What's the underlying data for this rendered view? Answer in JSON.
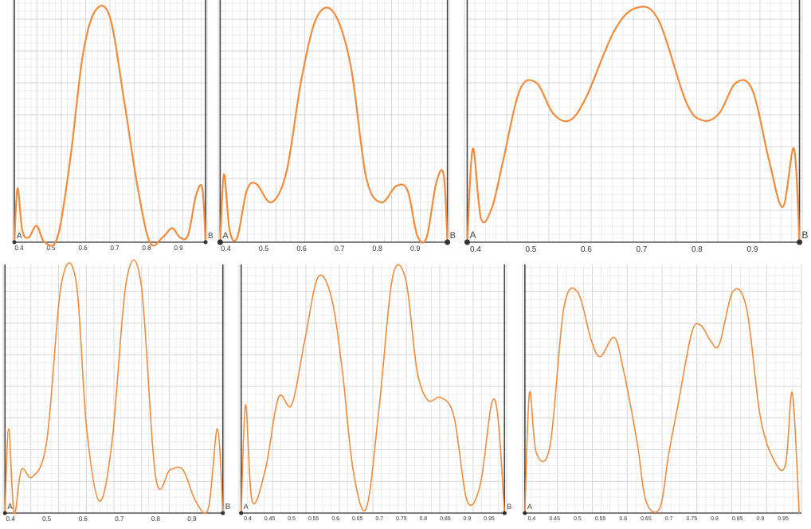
{
  "chart_data": [
    {
      "type": "line",
      "xlim": [
        0.38,
        0.99
      ],
      "ylim": [
        0,
        1.0
      ],
      "x_ticks": [
        "0.4",
        "0.5",
        "0.6",
        "0.7",
        "0.8",
        "0.9"
      ],
      "point_labels": [
        "A",
        "B"
      ],
      "line_color": "#f28b3c",
      "series": [
        {
          "x": [
            0.385,
            0.395,
            0.41,
            0.43,
            0.455,
            0.48,
            0.52,
            0.56,
            0.6,
            0.64,
            0.685,
            0.73,
            0.77,
            0.81,
            0.85,
            0.88,
            0.905,
            0.93,
            0.955,
            0.975,
            0.985
          ],
          "values": [
            0.0,
            0.23,
            0.05,
            0.02,
            0.07,
            0.0,
            0.02,
            0.35,
            0.8,
            0.99,
            0.96,
            0.6,
            0.25,
            0.0,
            0.02,
            0.06,
            0.02,
            0.03,
            0.2,
            0.23,
            0.0
          ]
        }
      ]
    },
    {
      "type": "line",
      "xlim": [
        0.38,
        0.99
      ],
      "ylim": [
        0,
        1.0
      ],
      "x_ticks": [
        "0.4",
        "0.5",
        "0.6",
        "0.7",
        "0.8",
        "0.9"
      ],
      "point_labels": [
        "A",
        "B"
      ],
      "line_color": "#f28b3c",
      "series": [
        {
          "x": [
            0.385,
            0.395,
            0.41,
            0.43,
            0.455,
            0.48,
            0.52,
            0.56,
            0.6,
            0.64,
            0.685,
            0.73,
            0.77,
            0.81,
            0.85,
            0.88,
            0.905,
            0.93,
            0.955,
            0.975,
            0.985
          ],
          "values": [
            0.0,
            0.29,
            0.05,
            0.02,
            0.22,
            0.25,
            0.17,
            0.3,
            0.7,
            0.96,
            0.98,
            0.75,
            0.28,
            0.17,
            0.24,
            0.22,
            0.03,
            0.02,
            0.25,
            0.29,
            0.0
          ]
        }
      ]
    },
    {
      "type": "line",
      "xlim": [
        0.38,
        0.99
      ],
      "ylim": [
        0,
        1.0
      ],
      "x_ticks": [
        "0.4",
        "0.5",
        "0.6",
        "0.7",
        "0.8",
        "0.9"
      ],
      "point_labels": [
        "A",
        "B"
      ],
      "line_color": "#f28b3c",
      "series": [
        {
          "x": [
            0.385,
            0.395,
            0.41,
            0.43,
            0.45,
            0.48,
            0.51,
            0.54,
            0.57,
            0.6,
            0.65,
            0.69,
            0.73,
            0.78,
            0.81,
            0.84,
            0.87,
            0.9,
            0.93,
            0.955,
            0.975,
            0.985
          ],
          "values": [
            0.0,
            0.4,
            0.1,
            0.15,
            0.35,
            0.65,
            0.68,
            0.55,
            0.52,
            0.62,
            0.9,
            1.0,
            0.95,
            0.6,
            0.52,
            0.55,
            0.68,
            0.65,
            0.35,
            0.15,
            0.4,
            0.0
          ]
        }
      ]
    },
    {
      "type": "line",
      "xlim": [
        0.38,
        0.99
      ],
      "ylim": [
        0,
        1.0
      ],
      "x_ticks": [
        "0.4",
        "0.5",
        "0.6",
        "0.7",
        "0.8",
        "0.9"
      ],
      "point_labels": [
        "A",
        "B"
      ],
      "line_color": "#f28b3c",
      "series": [
        {
          "x": [
            0.385,
            0.395,
            0.41,
            0.43,
            0.46,
            0.5,
            0.54,
            0.58,
            0.61,
            0.645,
            0.68,
            0.72,
            0.76,
            0.8,
            0.84,
            0.875,
            0.91,
            0.945,
            0.97,
            0.985
          ],
          "values": [
            0.0,
            0.35,
            0.0,
            0.18,
            0.15,
            0.3,
            0.95,
            0.97,
            0.35,
            0.05,
            0.3,
            0.97,
            0.95,
            0.15,
            0.18,
            0.18,
            0.05,
            0.02,
            0.35,
            0.0
          ]
        }
      ]
    },
    {
      "type": "line",
      "xlim": [
        0.38,
        0.99
      ],
      "ylim": [
        0,
        1.0
      ],
      "x_ticks": [
        "0.4",
        "0.45",
        "0.5",
        "0.55",
        "0.6",
        "0.65",
        "0.7",
        "0.75",
        "0.8",
        "0.85",
        "0.9",
        "0.95"
      ],
      "point_labels": [
        "A",
        "B"
      ],
      "line_color": "#f28b3c",
      "series": [
        {
          "x": [
            0.385,
            0.395,
            0.41,
            0.44,
            0.47,
            0.5,
            0.53,
            0.56,
            0.59,
            0.615,
            0.64,
            0.67,
            0.7,
            0.73,
            0.76,
            0.785,
            0.81,
            0.84,
            0.87,
            0.9,
            0.93,
            0.955,
            0.97,
            0.985
          ],
          "values": [
            0.0,
            0.45,
            0.05,
            0.18,
            0.48,
            0.45,
            0.72,
            0.98,
            0.9,
            0.6,
            0.18,
            0.02,
            0.45,
            0.98,
            0.97,
            0.6,
            0.47,
            0.48,
            0.4,
            0.05,
            0.12,
            0.45,
            0.4,
            0.0
          ]
        }
      ]
    },
    {
      "type": "line",
      "xlim": [
        0.38,
        0.99
      ],
      "ylim": [
        0,
        1.0
      ],
      "x_ticks": [
        "0.4",
        "0.45",
        "0.5",
        "0.55",
        "0.6",
        "0.65",
        "0.7",
        "0.75",
        "0.8",
        "0.85",
        "0.9",
        "0.95"
      ],
      "point_labels": [
        "A"
      ],
      "line_color": "#f28b3c",
      "series": [
        {
          "x": [
            0.385,
            0.395,
            0.41,
            0.44,
            0.47,
            0.5,
            0.53,
            0.55,
            0.58,
            0.6,
            0.63,
            0.65,
            0.68,
            0.7,
            0.72,
            0.75,
            0.77,
            0.79,
            0.81,
            0.84,
            0.87,
            0.9,
            0.93,
            0.955,
            0.97,
            0.985
          ],
          "values": [
            0.0,
            0.5,
            0.25,
            0.28,
            0.85,
            0.92,
            0.72,
            0.65,
            0.73,
            0.6,
            0.3,
            0.05,
            0.02,
            0.25,
            0.45,
            0.75,
            0.78,
            0.72,
            0.7,
            0.92,
            0.85,
            0.4,
            0.22,
            0.2,
            0.5,
            0.0
          ]
        }
      ]
    }
  ]
}
